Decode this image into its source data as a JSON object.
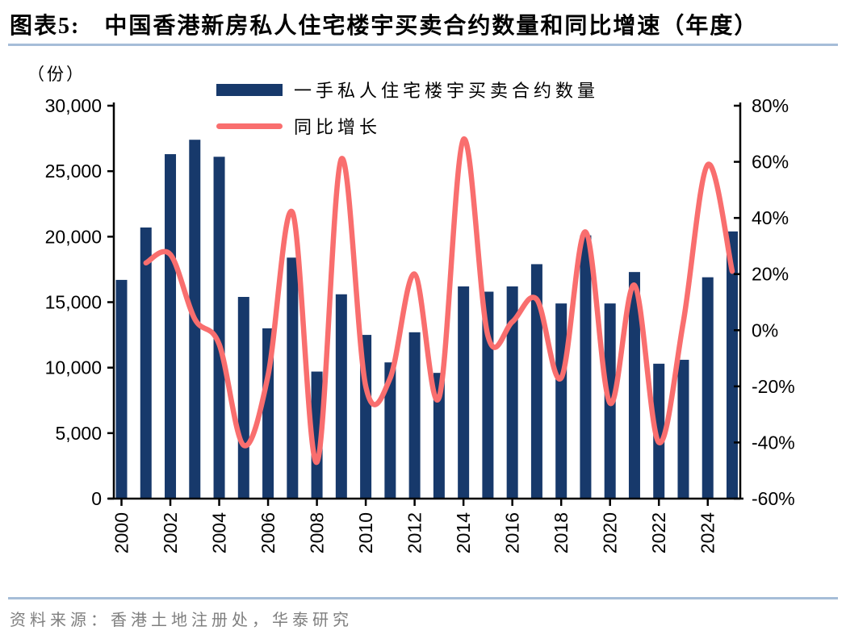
{
  "page": {
    "title_label": "图表5:",
    "title": "中国香港新房私人住宅楼宇买卖合约数量和同比增速（年度）",
    "source": "资料来源：香港土地注册处，华泰研究"
  },
  "colors": {
    "bar": "#17396B",
    "line": "#F96E6E",
    "divider": "#A6BDD8",
    "axis": "#000000",
    "source_text": "#7F7F7F",
    "title_text": "#000000"
  },
  "chart_data": {
    "type": "bar+line",
    "title": "中国香港新房私人住宅楼宇买卖合约数量和同比增速（年度）",
    "unit_label": "（份）",
    "grid": false,
    "legend_position": "top-center",
    "categories": [
      2000,
      2001,
      2002,
      2003,
      2004,
      2005,
      2006,
      2007,
      2008,
      2009,
      2010,
      2011,
      2012,
      2013,
      2014,
      2015,
      2016,
      2017,
      2018,
      2019,
      2020,
      2021,
      2022,
      2023,
      2024,
      2025
    ],
    "x_tick_labels": [
      "2000",
      "2002",
      "2004",
      "2006",
      "2008",
      "2010",
      "2012",
      "2014",
      "2016",
      "2018",
      "2020",
      "2022",
      "2024"
    ],
    "series": [
      {
        "name": "一手私人住宅楼宇买卖合约数量",
        "type": "bar",
        "axis": "left",
        "unit": "份",
        "values": [
          16700,
          20700,
          26300,
          27400,
          26100,
          15400,
          13000,
          18400,
          9700,
          15600,
          12500,
          10400,
          12700,
          9600,
          16200,
          15800,
          16200,
          17900,
          14900,
          20100,
          14900,
          17300,
          10300,
          10600,
          16900,
          20400
        ]
      },
      {
        "name": "同比增长",
        "type": "line",
        "axis": "right",
        "unit": "%",
        "values": [
          null,
          24,
          27,
          4,
          -5,
          -41,
          -16,
          42,
          -47,
          61,
          -20,
          -17,
          20,
          -24,
          68,
          -2,
          3,
          11,
          -17,
          35,
          -26,
          16,
          -40,
          3,
          59,
          21
        ]
      }
    ],
    "left_axis": {
      "min": 0,
      "max": 30000,
      "tick_step": 5000,
      "tick_labels": [
        "0",
        "5,000",
        "10,000",
        "15,000",
        "20,000",
        "25,000",
        "30,000"
      ]
    },
    "right_axis": {
      "min": -60,
      "max": 80,
      "tick_step": 20,
      "tick_labels": [
        "-60%",
        "-40%",
        "-20%",
        "0%",
        "20%",
        "40%",
        "60%",
        "80%"
      ]
    }
  }
}
